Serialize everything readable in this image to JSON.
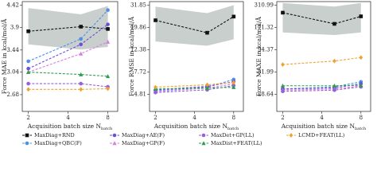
{
  "legend": [
    {
      "name": "MaxDiag+RND",
      "color": "#111111",
      "marker": "square"
    },
    {
      "name": "MaxDiag+QBC(F)",
      "color": "#4f8fe8",
      "marker": "circle"
    },
    {
      "name": "MaxDiag+AE(F)",
      "color": "#6a52d6",
      "marker": "circle"
    },
    {
      "name": "MaxDiag+GP(F)",
      "color": "#d77fe0",
      "marker": "triangle"
    },
    {
      "name": "MaxDet+GP(LL)",
      "color": "#9a5fd8",
      "marker": "circle"
    },
    {
      "name": "MaxDist+FEAT(LL)",
      "color": "#2e9e4e",
      "marker": "triangle"
    },
    {
      "name": "LCMD+FEAT(LL)",
      "color": "#f0a030",
      "marker": "diamond"
    }
  ],
  "chart_data": [
    {
      "type": "line",
      "y_label": "Force MAE in kcal/mol/Å",
      "x_label": "Acquisition batch size N",
      "x_label_sub": "batch",
      "log_x": true,
      "log_y": true,
      "x": [
        2,
        5,
        8
      ],
      "xlim": [
        1.8,
        9.5
      ],
      "xticks": [
        2,
        4,
        8
      ],
      "ylim": [
        2.44,
        4.51
      ],
      "yticks": [
        2.68,
        3.04,
        3.44,
        3.9,
        4.42
      ],
      "series": [
        {
          "values": [
            3.82,
            3.92,
            3.87
          ],
          "band_lower": [
            3.55,
            3.45,
            3.5
          ],
          "band_upper": [
            4.35,
            4.2,
            4.4
          ]
        },
        {
          "values": [
            3.23,
            3.66,
            4.3
          ]
        },
        {
          "values": [
            3.1,
            3.55,
            3.97
          ]
        },
        {
          "values": [
            3.04,
            3.37,
            3.6
          ]
        },
        {
          "values": [
            2.85,
            2.85,
            2.8
          ]
        },
        {
          "values": [
            3.04,
            3.0,
            2.97
          ]
        },
        {
          "values": [
            2.76,
            2.76,
            2.77
          ]
        }
      ]
    },
    {
      "type": "line",
      "y_label": "Force RMSE in kcal/mol/Å",
      "x_label": "Acquisition batch size N",
      "x_label_sub": "batch",
      "log_x": true,
      "log_y": true,
      "x": [
        2,
        5,
        8
      ],
      "xlim": [
        1.8,
        9.5
      ],
      "xticks": [
        2,
        4,
        8
      ],
      "ylim": [
        3.35,
        34.5
      ],
      "yticks": [
        4.81,
        7.72,
        12.38,
        19.86,
        31.85
      ],
      "series": [
        {
          "values": [
            23.2,
            17.8,
            25.1
          ],
          "band_lower": [
            14.8,
            13.5,
            15.5
          ],
          "band_upper": [
            31,
            27,
            32
          ]
        },
        {
          "values": [
            5.2,
            5.6,
            6.6
          ]
        },
        {
          "values": [
            5.3,
            5.7,
            6.3
          ]
        },
        {
          "values": [
            5.1,
            5.5,
            6.0
          ]
        },
        {
          "values": [
            5.0,
            5.3,
            5.8
          ]
        },
        {
          "values": [
            5.4,
            5.5,
            5.6
          ]
        },
        {
          "values": [
            5.6,
            5.9,
            6.2
          ]
        }
      ]
    },
    {
      "type": "line",
      "y_label": "Force MAXE in kcal/mol/Å",
      "x_label": "Acquisition batch size N",
      "x_label_sub": "batch",
      "log_x": true,
      "log_y": true,
      "x": [
        2,
        5,
        8
      ],
      "xlim": [
        1.8,
        9.5
      ],
      "xticks": [
        2,
        4,
        8
      ],
      "ylim": [
        18.1,
        343
      ],
      "yticks": [
        28.64,
        51.99,
        94.37,
        171.32,
        310.99
      ],
      "series": [
        {
          "values": [
            255,
            189,
            231
          ],
          "band_lower": [
            150,
            140,
            150
          ],
          "band_upper": [
            330,
            300,
            330
          ]
        },
        {
          "values": [
            33,
            35,
            40
          ]
        },
        {
          "values": [
            33,
            34,
            38
          ]
        },
        {
          "values": [
            32,
            33,
            36
          ]
        },
        {
          "values": [
            31,
            32,
            35
          ]
        },
        {
          "values": [
            36,
            36,
            36.5
          ]
        },
        {
          "values": [
            63.5,
            69.8,
            76.7
          ]
        }
      ]
    }
  ]
}
